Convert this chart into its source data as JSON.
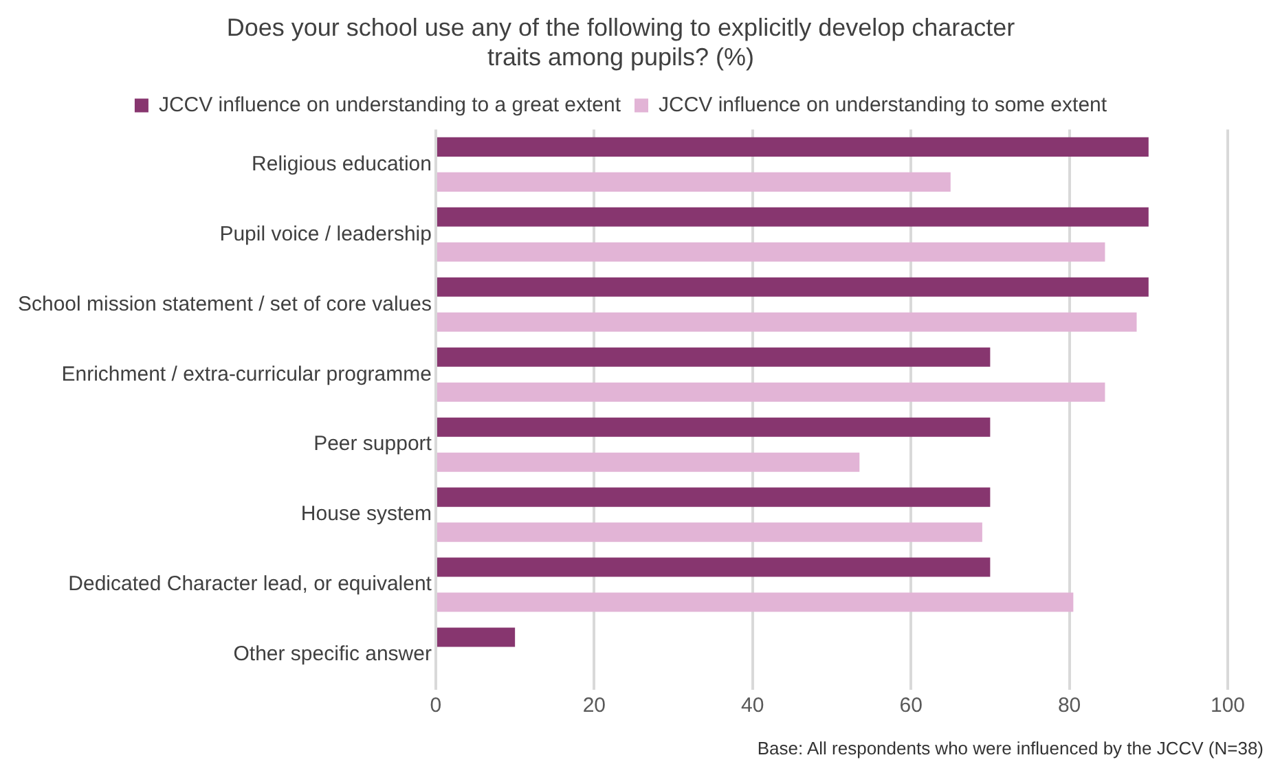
{
  "chart_data": {
    "type": "bar",
    "orientation": "horizontal",
    "title": "Does your school use any of the following to explicitly develop character traits among pupils? (%)",
    "categories": [
      "Religious education",
      "Pupil voice / leadership",
      "School mission statement / set of core values",
      "Enrichment / extra-curricular programme",
      "Peer support",
      "House system",
      "Dedicated Character lead, or equivalent",
      "Other specific answer"
    ],
    "series": [
      {
        "name": "JCCV influence on understanding to a great extent",
        "color": "#87366f",
        "values": [
          90,
          90,
          90,
          70,
          70,
          70,
          70,
          10
        ]
      },
      {
        "name": "JCCV influence on understanding to some extent",
        "color": "#e2b4d6",
        "values": [
          65,
          84.5,
          88.5,
          84.5,
          53.5,
          69,
          80.5,
          0
        ]
      }
    ],
    "xlim": [
      0,
      100
    ],
    "xticks": [
      0,
      20,
      40,
      60,
      80,
      100
    ],
    "grid": "x",
    "legend": "top",
    "annotations": [
      "Base: All respondents who were influenced by the JCCV (N=38)"
    ]
  }
}
